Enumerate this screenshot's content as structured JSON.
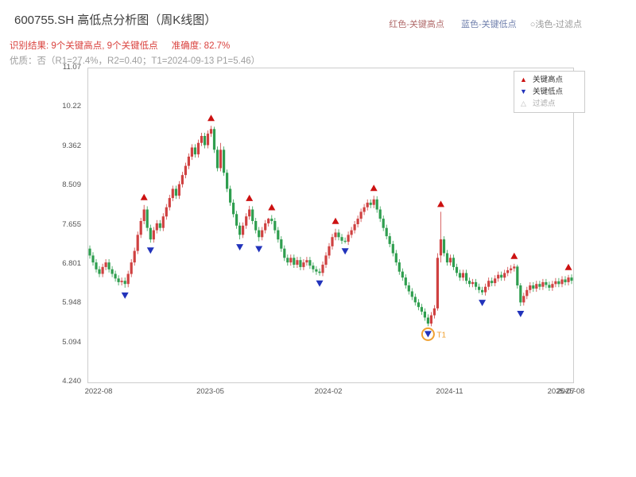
{
  "header": {
    "title": "600755.SH 高低点分析图（周K线图）",
    "legend_note": {
      "high": "红色-关键高点",
      "low": "蓝色-关键低点",
      "filtered": "○浅色-过滤点"
    },
    "result_line": {
      "recognition": "识别结果: 9个关键高点, 9个关键低点",
      "accuracy": "准确度: 82.7%"
    },
    "quality_line": "优质：否（R1=27.4%，R2=0.40；T1=2024-09-13 P1=5.46）"
  },
  "legend_box": {
    "items": [
      {
        "symbol": "▲",
        "label": "关键高点",
        "symbol_color": "#cc1111",
        "label_color": "#333333"
      },
      {
        "symbol": "▼",
        "label": "关键低点",
        "symbol_color": "#2233bb",
        "label_color": "#333333"
      },
      {
        "symbol": "△",
        "label": "过滤点",
        "symbol_color": "#bbbbbb",
        "label_color": "#aaaaaa"
      }
    ]
  },
  "chart_data": {
    "type": "candlestick",
    "title": "600755.SH 高低点分析图（周K线图）",
    "period": "weekly",
    "ylim": [
      4.24,
      11.07
    ],
    "y_ticks": [
      "11.07",
      "10.22",
      "9.362",
      "8.509",
      "7.655",
      "6.801",
      "5.948",
      "5.094",
      "4.240"
    ],
    "x_ticks": [
      {
        "i": 3,
        "label": "2022-08"
      },
      {
        "i": 38,
        "label": "2023-05"
      },
      {
        "i": 75,
        "label": "2024-02"
      },
      {
        "i": 113,
        "label": "2024-11"
      },
      {
        "i": 148,
        "label": "2025-07"
      },
      {
        "i": 151,
        "label": "2025-08"
      }
    ],
    "colors": {
      "up": "#cf4141",
      "down": "#2f9e4f",
      "key_high": "#cc1111",
      "key_low": "#2233bb",
      "t1": "#f0a030"
    },
    "candles": [
      [
        7.15,
        7.22,
        6.93,
        7.0
      ],
      [
        7.0,
        7.07,
        6.78,
        6.85
      ],
      [
        6.85,
        6.92,
        6.63,
        6.7
      ],
      [
        6.7,
        6.77,
        6.53,
        6.6
      ],
      [
        6.6,
        6.82,
        6.53,
        6.75
      ],
      [
        6.75,
        6.92,
        6.68,
        6.85
      ],
      [
        6.85,
        6.92,
        6.63,
        6.7
      ],
      [
        6.7,
        6.77,
        6.53,
        6.6
      ],
      [
        6.6,
        6.67,
        6.43,
        6.5
      ],
      [
        6.5,
        6.57,
        6.35,
        6.42
      ],
      [
        6.42,
        6.52,
        6.35,
        6.45
      ],
      [
        6.45,
        6.52,
        6.3,
        6.38
      ],
      [
        6.38,
        6.67,
        6.31,
        6.6
      ],
      [
        6.6,
        6.92,
        6.53,
        6.85
      ],
      [
        6.85,
        7.17,
        6.78,
        7.1
      ],
      [
        7.1,
        7.52,
        7.03,
        7.45
      ],
      [
        7.45,
        7.82,
        7.38,
        7.75
      ],
      [
        7.75,
        8.1,
        7.68,
        8.0
      ],
      [
        8.0,
        8.07,
        7.53,
        7.6
      ],
      [
        7.6,
        7.67,
        7.28,
        7.35
      ],
      [
        7.35,
        7.62,
        7.28,
        7.55
      ],
      [
        7.55,
        7.77,
        7.48,
        7.7
      ],
      [
        7.7,
        7.77,
        7.53,
        7.6
      ],
      [
        7.6,
        7.92,
        7.53,
        7.85
      ],
      [
        7.85,
        8.12,
        7.78,
        8.05
      ],
      [
        8.05,
        8.32,
        7.98,
        8.25
      ],
      [
        8.25,
        8.52,
        8.18,
        8.45
      ],
      [
        8.45,
        8.52,
        8.23,
        8.3
      ],
      [
        8.3,
        8.62,
        8.23,
        8.55
      ],
      [
        8.55,
        8.82,
        8.48,
        8.75
      ],
      [
        8.75,
        9.02,
        8.68,
        8.95
      ],
      [
        8.95,
        9.22,
        8.88,
        9.15
      ],
      [
        9.15,
        9.42,
        9.08,
        9.35
      ],
      [
        9.35,
        9.42,
        9.13,
        9.2
      ],
      [
        9.2,
        9.52,
        9.13,
        9.45
      ],
      [
        9.45,
        9.67,
        9.38,
        9.6
      ],
      [
        9.6,
        9.67,
        9.33,
        9.4
      ],
      [
        9.4,
        9.72,
        9.33,
        9.65
      ],
      [
        9.65,
        9.82,
        9.58,
        9.75
      ],
      [
        9.75,
        9.8,
        9.23,
        9.3
      ],
      [
        9.3,
        9.37,
        8.83,
        8.9
      ],
      [
        8.9,
        9.45,
        8.83,
        9.3
      ],
      [
        9.3,
        9.37,
        8.73,
        8.8
      ],
      [
        8.8,
        8.87,
        8.38,
        8.45
      ],
      [
        8.45,
        8.52,
        8.08,
        8.15
      ],
      [
        8.15,
        8.22,
        7.83,
        7.9
      ],
      [
        7.9,
        7.97,
        7.58,
        7.65
      ],
      [
        7.65,
        7.72,
        7.35,
        7.45
      ],
      [
        7.45,
        7.72,
        7.38,
        7.65
      ],
      [
        7.65,
        7.92,
        7.58,
        7.85
      ],
      [
        7.85,
        8.08,
        7.78,
        8.0
      ],
      [
        8.0,
        8.07,
        7.68,
        7.75
      ],
      [
        7.75,
        7.82,
        7.48,
        7.55
      ],
      [
        7.55,
        7.62,
        7.31,
        7.4
      ],
      [
        7.4,
        7.62,
        7.33,
        7.55
      ],
      [
        7.55,
        7.77,
        7.48,
        7.7
      ],
      [
        7.7,
        7.82,
        7.63,
        7.8
      ],
      [
        7.8,
        7.88,
        7.68,
        7.75
      ],
      [
        7.75,
        7.82,
        7.48,
        7.55
      ],
      [
        7.55,
        7.62,
        7.28,
        7.35
      ],
      [
        7.35,
        7.42,
        7.08,
        7.15
      ],
      [
        7.15,
        7.22,
        6.88,
        6.95
      ],
      [
        6.95,
        7.02,
        6.78,
        6.85
      ],
      [
        6.85,
        7.02,
        6.78,
        6.95
      ],
      [
        6.95,
        7.02,
        6.73,
        6.8
      ],
      [
        6.8,
        6.97,
        6.73,
        6.9
      ],
      [
        6.9,
        6.97,
        6.68,
        6.75
      ],
      [
        6.75,
        6.92,
        6.68,
        6.85
      ],
      [
        6.85,
        6.97,
        6.78,
        6.9
      ],
      [
        6.9,
        6.97,
        6.71,
        6.78
      ],
      [
        6.78,
        6.85,
        6.63,
        6.7
      ],
      [
        6.7,
        6.77,
        6.58,
        6.65
      ],
      [
        6.65,
        6.72,
        6.56,
        6.62
      ],
      [
        6.62,
        6.87,
        6.55,
        6.8
      ],
      [
        6.8,
        7.07,
        6.73,
        7.0
      ],
      [
        7.0,
        7.27,
        6.93,
        7.2
      ],
      [
        7.2,
        7.47,
        7.13,
        7.4
      ],
      [
        7.4,
        7.58,
        7.33,
        7.5
      ],
      [
        7.5,
        7.57,
        7.33,
        7.4
      ],
      [
        7.4,
        7.47,
        7.25,
        7.32
      ],
      [
        7.32,
        7.39,
        7.26,
        7.3
      ],
      [
        7.3,
        7.52,
        7.23,
        7.45
      ],
      [
        7.45,
        7.62,
        7.38,
        7.55
      ],
      [
        7.55,
        7.75,
        7.48,
        7.68
      ],
      [
        7.68,
        7.87,
        7.61,
        7.8
      ],
      [
        7.8,
        8.02,
        7.73,
        7.95
      ],
      [
        7.95,
        8.12,
        7.88,
        8.05
      ],
      [
        8.05,
        8.22,
        7.98,
        8.15
      ],
      [
        8.15,
        8.22,
        8.03,
        8.1
      ],
      [
        8.1,
        8.3,
        8.03,
        8.22
      ],
      [
        8.22,
        8.29,
        7.93,
        8.0
      ],
      [
        8.0,
        8.07,
        7.73,
        7.8
      ],
      [
        7.8,
        7.87,
        7.53,
        7.6
      ],
      [
        7.6,
        7.67,
        7.35,
        7.42
      ],
      [
        7.42,
        7.49,
        7.18,
        7.25
      ],
      [
        7.25,
        7.32,
        6.98,
        7.05
      ],
      [
        7.05,
        7.12,
        6.78,
        6.85
      ],
      [
        6.85,
        6.92,
        6.58,
        6.65
      ],
      [
        6.65,
        6.72,
        6.45,
        6.52
      ],
      [
        6.52,
        6.59,
        6.28,
        6.35
      ],
      [
        6.35,
        6.42,
        6.15,
        6.22
      ],
      [
        6.22,
        6.29,
        6.03,
        6.1
      ],
      [
        6.1,
        6.17,
        5.91,
        5.98
      ],
      [
        5.98,
        6.05,
        5.81,
        5.88
      ],
      [
        5.88,
        5.95,
        5.71,
        5.78
      ],
      [
        5.78,
        5.85,
        5.58,
        5.65
      ],
      [
        5.65,
        5.72,
        5.46,
        5.52
      ],
      [
        5.52,
        5.77,
        5.46,
        5.7
      ],
      [
        5.7,
        5.92,
        5.63,
        5.85
      ],
      [
        5.85,
        7.05,
        5.8,
        6.95
      ],
      [
        7.0,
        7.95,
        6.85,
        7.35
      ],
      [
        7.35,
        7.42,
        6.98,
        7.05
      ],
      [
        7.05,
        7.12,
        6.78,
        6.85
      ],
      [
        6.85,
        7.02,
        6.78,
        6.95
      ],
      [
        6.95,
        7.02,
        6.68,
        6.75
      ],
      [
        6.75,
        6.82,
        6.55,
        6.62
      ],
      [
        6.62,
        6.69,
        6.45,
        6.52
      ],
      [
        6.52,
        6.69,
        6.45,
        6.62
      ],
      [
        6.62,
        6.69,
        6.38,
        6.45
      ],
      [
        6.45,
        6.52,
        6.31,
        6.38
      ],
      [
        6.38,
        6.49,
        6.31,
        6.42
      ],
      [
        6.42,
        6.49,
        6.25,
        6.32
      ],
      [
        6.32,
        6.39,
        6.18,
        6.25
      ],
      [
        6.25,
        6.32,
        6.14,
        6.2
      ],
      [
        6.2,
        6.39,
        6.13,
        6.32
      ],
      [
        6.32,
        6.52,
        6.25,
        6.45
      ],
      [
        6.45,
        6.52,
        6.33,
        6.4
      ],
      [
        6.4,
        6.57,
        6.33,
        6.5
      ],
      [
        6.5,
        6.65,
        6.43,
        6.58
      ],
      [
        6.58,
        6.65,
        6.45,
        6.52
      ],
      [
        6.52,
        6.69,
        6.45,
        6.62
      ],
      [
        6.62,
        6.75,
        6.55,
        6.68
      ],
      [
        6.68,
        6.79,
        6.61,
        6.72
      ],
      [
        6.72,
        6.82,
        6.65,
        6.76
      ],
      [
        6.76,
        6.8,
        6.28,
        6.35
      ],
      [
        6.35,
        6.4,
        5.9,
        5.98
      ],
      [
        5.98,
        6.19,
        5.91,
        6.12
      ],
      [
        6.12,
        6.32,
        6.05,
        6.25
      ],
      [
        6.25,
        6.42,
        6.18,
        6.35
      ],
      [
        6.35,
        6.42,
        6.21,
        6.28
      ],
      [
        6.28,
        6.45,
        6.21,
        6.38
      ],
      [
        6.38,
        6.45,
        6.25,
        6.32
      ],
      [
        6.32,
        6.49,
        6.25,
        6.42
      ],
      [
        6.42,
        6.49,
        6.29,
        6.36
      ],
      [
        6.36,
        6.43,
        6.23,
        6.3
      ],
      [
        6.3,
        6.45,
        6.23,
        6.38
      ],
      [
        6.38,
        6.51,
        6.31,
        6.44
      ],
      [
        6.44,
        6.51,
        6.31,
        6.38
      ],
      [
        6.38,
        6.55,
        6.31,
        6.48
      ],
      [
        6.48,
        6.55,
        6.35,
        6.42
      ],
      [
        6.42,
        6.58,
        6.35,
        6.52
      ],
      [
        6.52,
        6.59,
        6.38,
        6.45
      ]
    ],
    "key_high_indices": [
      17,
      38,
      50,
      57,
      77,
      89,
      110,
      133,
      150
    ],
    "key_low_indices": [
      11,
      19,
      47,
      53,
      72,
      80,
      106,
      123,
      135
    ],
    "t1_marker": {
      "index": 106,
      "label": "T1",
      "price": 5.46
    }
  }
}
